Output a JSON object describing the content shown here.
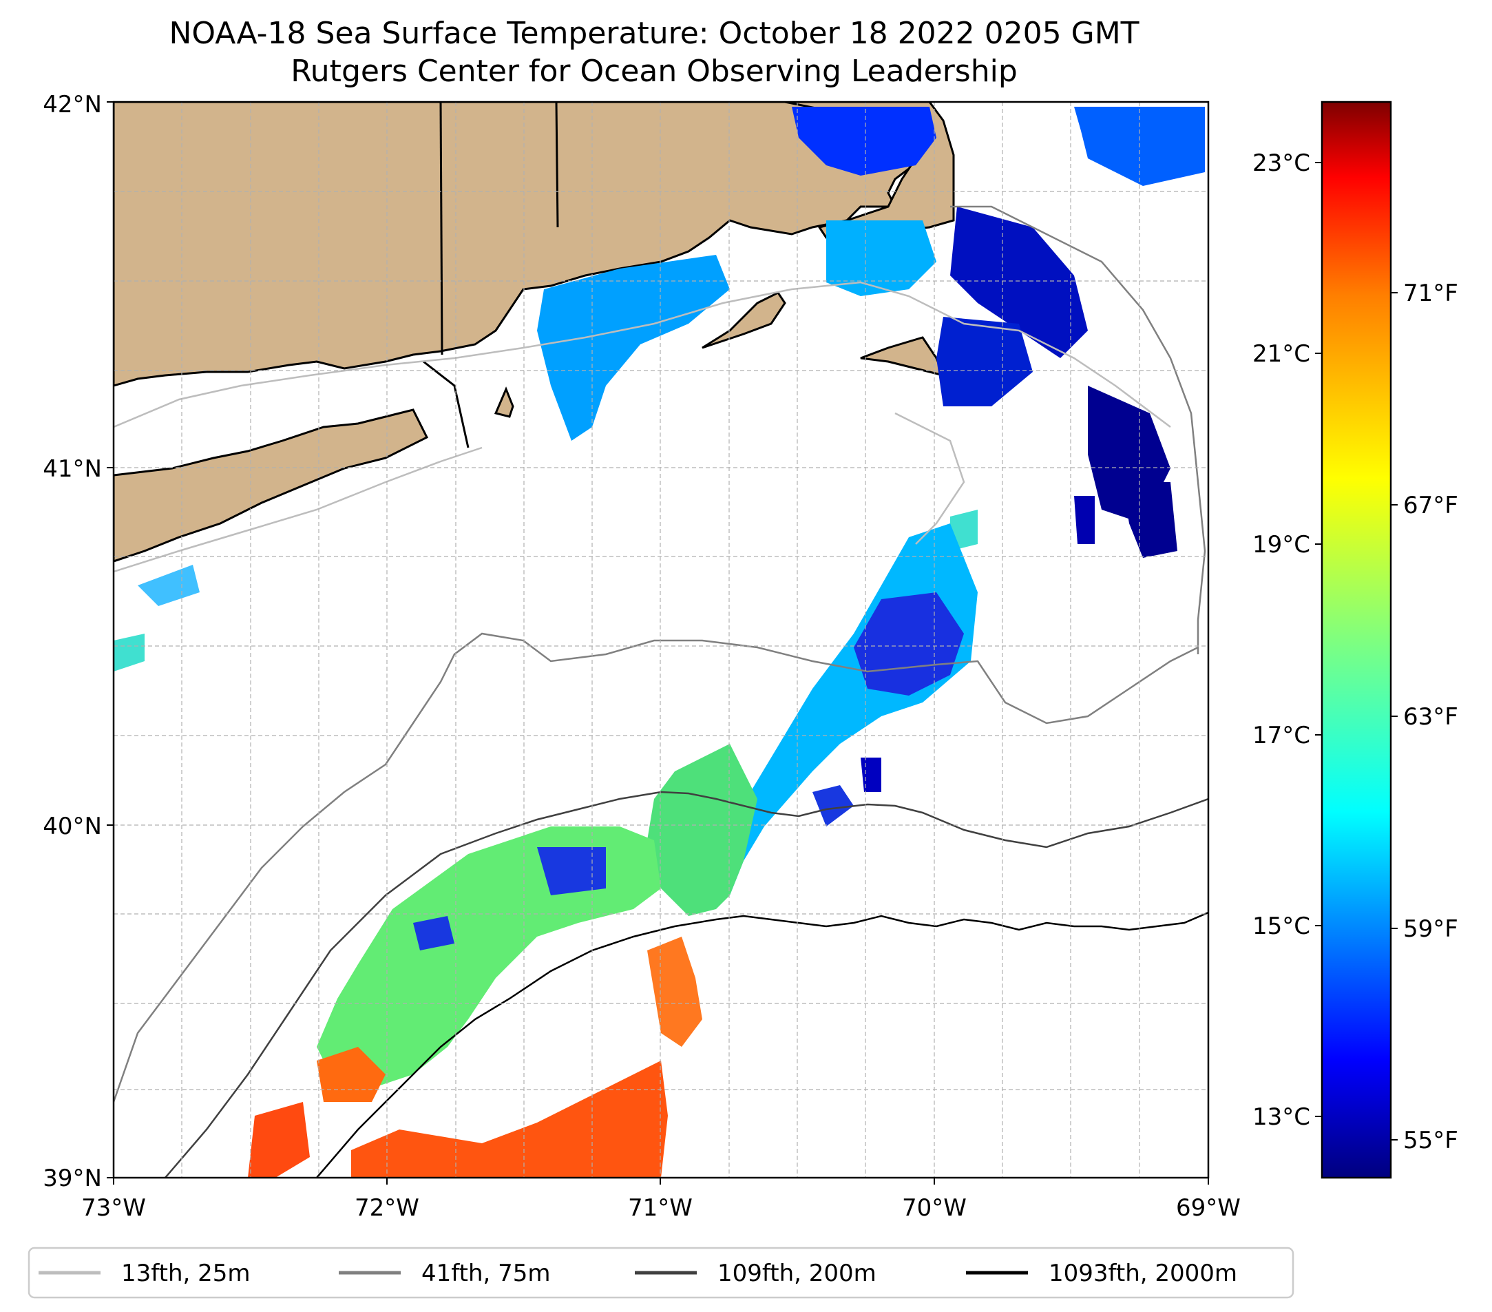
{
  "title": {
    "line1": "NOAA-18 Sea Surface Temperature: October 18 2022 0205 GMT",
    "line2": "Rutgers Center for Ocean Observing Leadership"
  },
  "map": {
    "lat_labels": [
      "42°N",
      "41°N",
      "40°N",
      "39°N"
    ],
    "lon_labels": [
      "73°W",
      "72°W",
      "71°W",
      "70°W",
      "69°W"
    ],
    "extent": {
      "lon_min": -73,
      "lon_max": -69,
      "lat_min": 39,
      "lat_max": 42
    },
    "land_color": "#d2b48c",
    "ocean_color": "#ffffff",
    "regions": [
      "Connecticut",
      "Rhode Island",
      "Massachusetts",
      "Long Island",
      "Block Island",
      "Martha's Vineyard",
      "Nantucket",
      "Cape Cod"
    ]
  },
  "colorbar": {
    "celsius_labels": [
      "23°C",
      "21°C",
      "19°C",
      "17°C",
      "15°C",
      "13°C"
    ],
    "fahrenheit_labels": [
      "71°F",
      "67°F",
      "63°F",
      "59°F",
      "55°F"
    ],
    "colormap": "jet",
    "colors": [
      "#00007f",
      "#0000ff",
      "#007fff",
      "#00ffff",
      "#7fff7f",
      "#ffff00",
      "#ff7f00",
      "#ff0000",
      "#7f0000"
    ]
  },
  "legend": {
    "items": [
      {
        "label": "13fth, 25m",
        "color": "#bdbdbd"
      },
      {
        "label": "41fth, 75m",
        "color": "#808080"
      },
      {
        "label": "109fth, 200m",
        "color": "#404040"
      },
      {
        "label": "1093fth, 2000m",
        "color": "#000000"
      }
    ]
  }
}
